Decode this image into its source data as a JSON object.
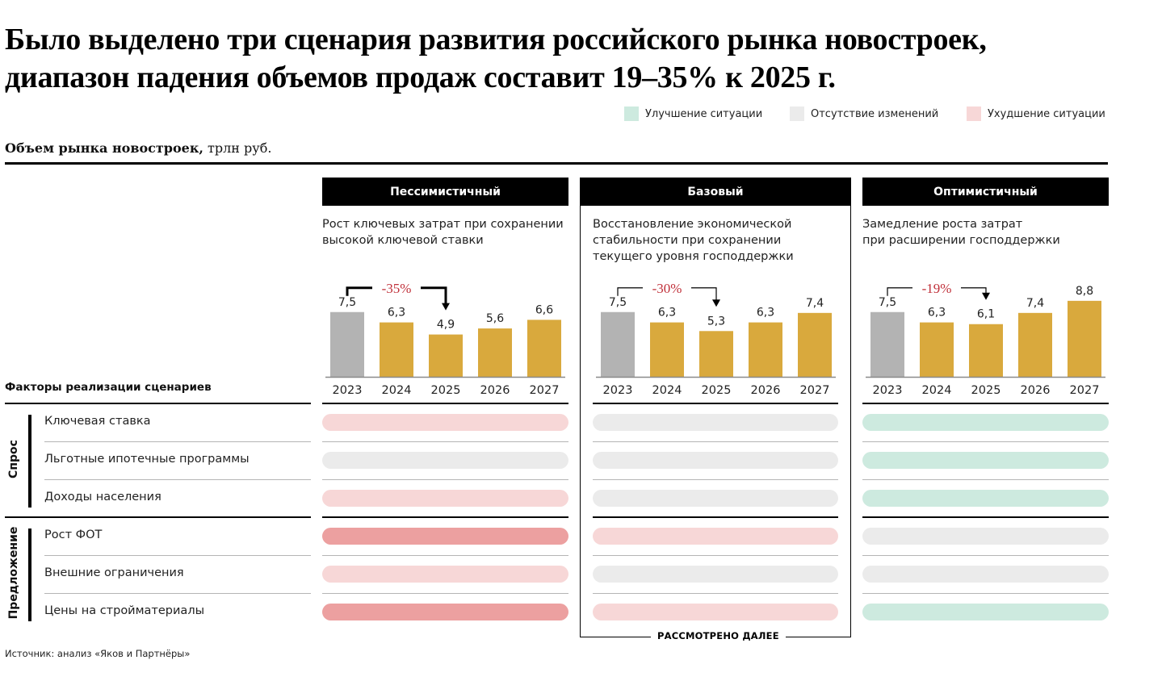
{
  "title_lines": [
    "Было выделено три сценария развития российского рынка новостроек,",
    "диапазон падения объемов продаж составит 19–35% к 2025 г."
  ],
  "legend": [
    {
      "key": "improve",
      "label": "Улучшение ситуации",
      "color": "#cdeadf"
    },
    {
      "key": "none",
      "label": "Отсутствие изменений",
      "color": "#ebebeb"
    },
    {
      "key": "worse",
      "label": "Ухудшение ситуации",
      "color": "#f7d7d7"
    }
  ],
  "subtitle": {
    "bold": "Объем рынка новостроек,",
    "normal": " трлн руб."
  },
  "status_colors": {
    "improve": "#cdeadf",
    "none": "#ebebeb",
    "worse": "#f7d7d7",
    "strongly_worse": "#eca0a0"
  },
  "bar_colors": {
    "actual": "#b3b3b3",
    "forecast": "#d9a93d"
  },
  "base_caption": "РАССМОТРЕНО ДАЛЕЕ",
  "factors_title": "Факторы реализации сценариев",
  "groups": [
    {
      "label": "Спрос",
      "factors": [
        "Ключевая ставка",
        "Льготные ипотечные программы",
        "Доходы населения"
      ]
    },
    {
      "label": "Предложение",
      "factors": [
        "Рост ФОТ",
        "Внешние ограничения",
        "Цены на стройматериалы"
      ]
    }
  ],
  "scenarios": [
    {
      "name": "Пессимистичный",
      "description": "Рост ключевых затрат при сохранении\nвысокой ключевой ставки",
      "change_label": "-35%",
      "factor_status": [
        "worse",
        "none",
        "worse",
        "strongly_worse",
        "worse",
        "strongly_worse"
      ]
    },
    {
      "name": "Базовый",
      "description": "Восстановление экономической\nстабильности при сохранении\nтекущего уровня господдержки",
      "change_label": "-30%",
      "factor_status": [
        "none",
        "none",
        "none",
        "worse",
        "none",
        "worse"
      ]
    },
    {
      "name": "Оптимистичный",
      "description": "Замедление роста затрат\nпри расширении господдержки",
      "change_label": "-19%",
      "factor_status": [
        "improve",
        "improve",
        "improve",
        "none",
        "none",
        "improve"
      ]
    }
  ],
  "chart_data": [
    {
      "type": "bar",
      "title": "Пессимистичный",
      "categories": [
        "2023",
        "2024",
        "2025",
        "2026",
        "2027"
      ],
      "values": [
        7.5,
        6.3,
        4.9,
        5.6,
        6.6
      ],
      "value_labels": [
        "7,5",
        "6,3",
        "4,9",
        "5,6",
        "6,6"
      ],
      "annotation": "-35%",
      "ylabel": "трлн руб.",
      "ylim": [
        0,
        9
      ]
    },
    {
      "type": "bar",
      "title": "Базовый",
      "categories": [
        "2023",
        "2024",
        "2025",
        "2026",
        "2027"
      ],
      "values": [
        7.5,
        6.3,
        5.3,
        6.3,
        7.4
      ],
      "value_labels": [
        "7,5",
        "6,3",
        "5,3",
        "6,3",
        "7,4"
      ],
      "annotation": "-30%",
      "ylabel": "трлн руб.",
      "ylim": [
        0,
        9
      ]
    },
    {
      "type": "bar",
      "title": "Оптимистичный",
      "categories": [
        "2023",
        "2024",
        "2025",
        "2026",
        "2027"
      ],
      "values": [
        7.5,
        6.3,
        6.1,
        7.4,
        8.8
      ],
      "value_labels": [
        "7,5",
        "6,3",
        "6,1",
        "7,4",
        "8,8"
      ],
      "annotation": "-19%",
      "ylabel": "трлн руб.",
      "ylim": [
        0,
        9
      ]
    }
  ],
  "source": "Источник: анализ «Яков и Партнёры»"
}
